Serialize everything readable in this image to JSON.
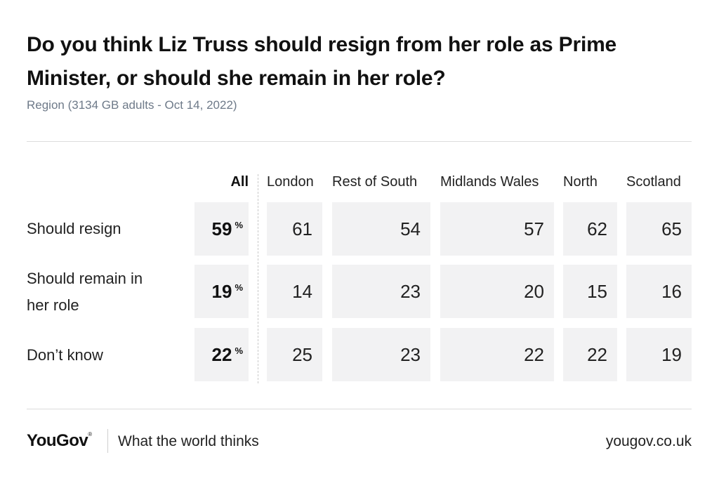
{
  "title": "Do you think Liz Truss should resign from her role as Prime Minister, or should she remain in her role?",
  "subtitle": "Region (3134 GB adults - Oct 14, 2022)",
  "chart_data": {
    "type": "table",
    "title": "Do you think Liz Truss should resign from her role as Prime Minister, or should she remain in her role?",
    "subtitle": "Region (3134 GB adults - Oct 14, 2022)",
    "columns": [
      "All",
      "London",
      "Rest of South",
      "Midlands Wales",
      "North",
      "Scotland"
    ],
    "unit": "%",
    "rows": [
      {
        "label": "Should resign",
        "values": [
          59,
          61,
          54,
          57,
          62,
          65
        ]
      },
      {
        "label": "Should remain in her role",
        "values": [
          19,
          14,
          23,
          20,
          15,
          16
        ]
      },
      {
        "label": "Don’t know",
        "values": [
          22,
          25,
          23,
          22,
          22,
          19
        ]
      }
    ]
  },
  "footer": {
    "logo": "YouGov",
    "registered_mark": "®",
    "tagline": "What the world thinks",
    "site": "yougov.co.uk"
  }
}
